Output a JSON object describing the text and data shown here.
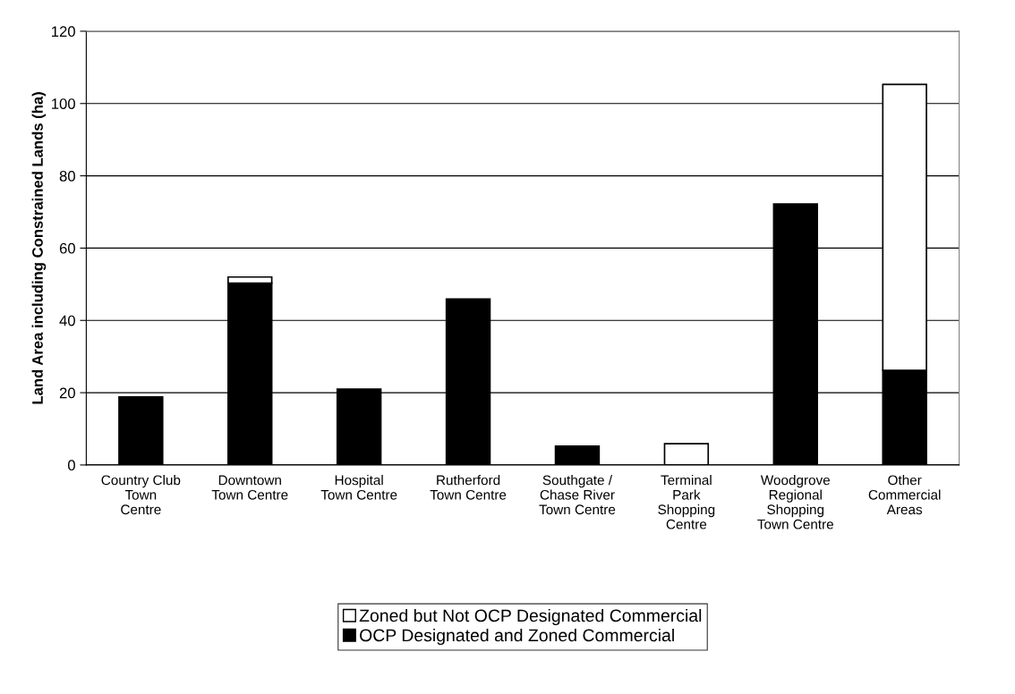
{
  "chart_data": {
    "type": "bar",
    "stacked": true,
    "ylabel": "Land Area including Constrained Lands (ha)",
    "categories": [
      "Country Club\nTown\nCentre",
      "Downtown\nTown Centre",
      "Hospital\nTown Centre",
      "Rutherford\nTown Centre",
      "Southgate /\nChase River\nTown Centre",
      "Terminal\nPark\nShopping\nCentre",
      "Woodgrove\nRegional\nShopping\nTown Centre",
      "Other\nCommercial\nAreas"
    ],
    "series": [
      {
        "name": "OCP Designated and Zoned Commercial",
        "color": "#000000",
        "values": [
          18.8,
          50.3,
          21.0,
          45.9,
          5.2,
          null,
          72.2,
          26.2
        ]
      },
      {
        "name": "Zoned but Not OCP Designated Commercial",
        "color": "#ffffff",
        "values": [
          null,
          1.7,
          null,
          null,
          null,
          5.9,
          null,
          79.1
        ]
      }
    ],
    "ylim": [
      0,
      120
    ],
    "yticks": [
      0,
      20,
      40,
      60,
      80,
      100,
      120
    ],
    "grid": "y",
    "legend": "bottom"
  }
}
